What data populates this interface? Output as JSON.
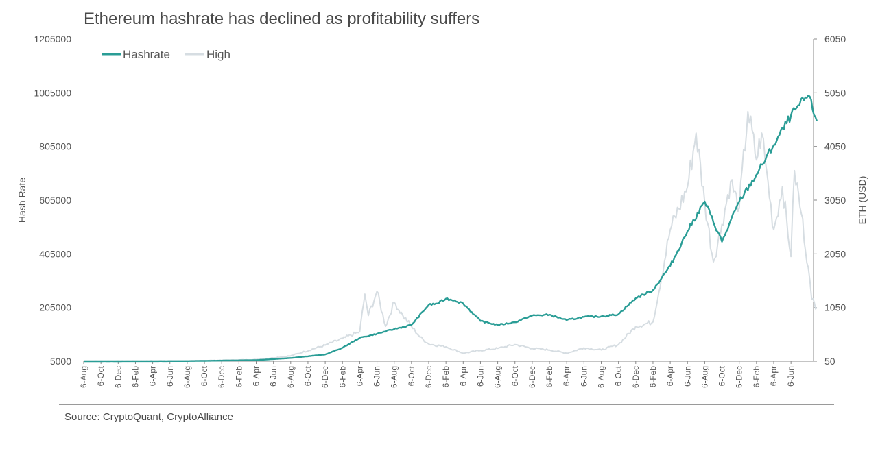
{
  "chart_data": {
    "type": "line",
    "title": "Ethereum hashrate has declined as profitability suffers",
    "source": "Source: CryptoQuant, CryptoAlliance",
    "ylabel_left": "Hash Rate",
    "ylabel_right": "ETH (USD)",
    "ylim_left": [
      5000,
      1205000
    ],
    "ylim_right": [
      50,
      6050
    ],
    "yticks_left": [
      "1205000",
      "1005000",
      "805000",
      "605000",
      "405000",
      "205000",
      "5000"
    ],
    "yticks_right": [
      "6050",
      "5050",
      "4050",
      "3050",
      "2050",
      "1050",
      "50"
    ],
    "x_tick_labels": [
      "6-Aug",
      "6-Oct",
      "6-Dec",
      "6-Feb",
      "6-Apr",
      "6-Jun",
      "6-Aug",
      "6-Oct",
      "6-Dec",
      "6-Feb",
      "6-Apr",
      "6-Jun",
      "6-Aug",
      "6-Oct",
      "6-Dec",
      "6-Feb",
      "6-Apr",
      "6-Jun",
      "6-Aug",
      "6-Oct",
      "6-Dec",
      "6-Feb",
      "6-Apr",
      "6-Jun",
      "6-Aug",
      "6-Oct",
      "6-Dec",
      "6-Feb",
      "6-Apr",
      "6-Jun",
      "6-Aug",
      "6-Oct",
      "6-Dec",
      "6-Feb",
      "6-Apr",
      "6-Jun",
      "6-Aug",
      "6-Oct",
      "6-Dec",
      "6-Feb",
      "6-Apr",
      "6-Jun"
    ],
    "legend": [
      "Hashrate",
      "High"
    ],
    "legend_position": "top-left",
    "colors": {
      "hashrate": "#2a9d96",
      "high": "#d6dde2",
      "axis": "#888888"
    },
    "series": [
      {
        "name": "Hashrate",
        "axis": "left",
        "x": [
          0,
          6,
          10,
          12,
          14,
          15,
          16,
          17,
          18,
          19,
          20,
          20.5,
          21,
          21.5,
          22,
          23,
          24,
          25,
          26,
          27,
          28,
          29,
          30,
          31,
          32,
          33,
          34,
          35,
          36,
          37,
          38,
          39,
          40,
          41,
          41.5,
          42,
          42.5
        ],
        "values": [
          5000,
          5500,
          9000,
          17000,
          30000,
          55000,
          92000,
          107000,
          125000,
          140000,
          215000,
          220000,
          238000,
          232000,
          220000,
          155000,
          140000,
          150000,
          175000,
          178000,
          158000,
          170000,
          172000,
          180000,
          240000,
          270000,
          360000,
          490000,
          600000,
          450000,
          600000,
          700000,
          810000,
          920000,
          960000,
          995000,
          900000
        ]
      },
      {
        "name": "High",
        "axis": "right",
        "x": [
          0,
          6,
          10,
          12,
          14,
          15,
          16,
          16.3,
          16.5,
          17,
          17.5,
          18,
          18.5,
          19,
          19.5,
          20,
          21,
          22,
          23,
          24,
          25,
          26,
          27,
          28,
          29,
          30,
          31,
          32,
          33,
          34,
          35,
          35.5,
          36,
          36.5,
          37,
          37.5,
          38,
          38.5,
          39,
          39.3,
          39.5,
          40,
          40.5,
          41,
          41.2,
          41.6,
          42,
          42.2,
          42.5
        ],
        "values": [
          50,
          55,
          80,
          150,
          350,
          470,
          600,
          1300,
          900,
          1350,
          700,
          1150,
          900,
          700,
          500,
          370,
          320,
          200,
          250,
          290,
          360,
          290,
          260,
          200,
          300,
          260,
          360,
          700,
          780,
          2500,
          3300,
          4300,
          3000,
          1900,
          2600,
          3400,
          2900,
          4700,
          3800,
          4300,
          3800,
          2500,
          3300,
          2000,
          3600,
          2800,
          1800,
          1200,
          1050
        ]
      }
    ]
  }
}
